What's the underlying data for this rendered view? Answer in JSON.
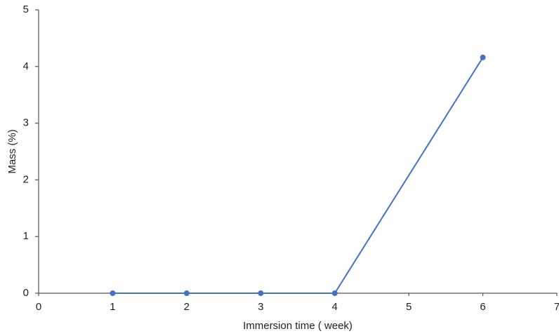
{
  "chart_data": {
    "type": "line",
    "x_label": "Immersion time ( week)",
    "y_label": "Mass (%)",
    "x": [
      1,
      2,
      3,
      4,
      6
    ],
    "series": [
      {
        "name": "Mass",
        "color": "#4472c4",
        "values": [
          0,
          0,
          0,
          0,
          4.16
        ]
      }
    ],
    "xlim": [
      0,
      7
    ],
    "ylim": [
      0,
      5
    ],
    "xticks": [
      0,
      1,
      2,
      3,
      4,
      5,
      6,
      7
    ],
    "yticks": [
      0,
      1,
      2,
      3,
      4,
      5
    ],
    "grid": false
  }
}
